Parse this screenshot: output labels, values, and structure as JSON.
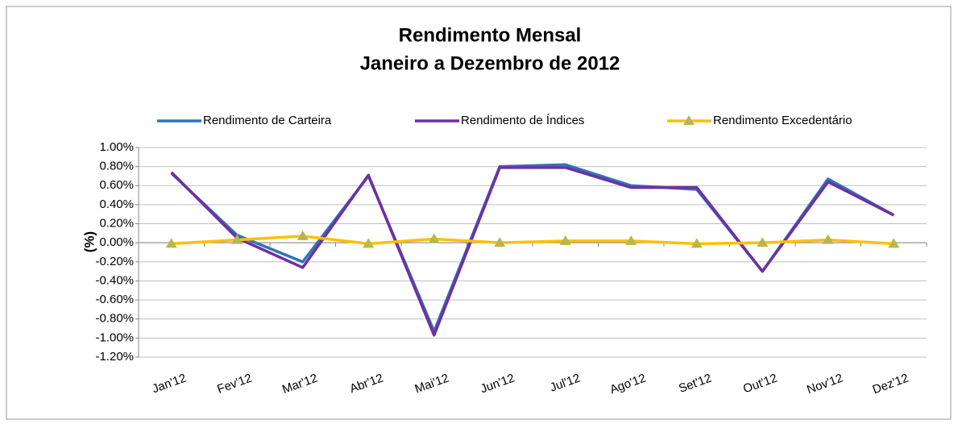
{
  "chart_data": {
    "type": "line",
    "title": "Rendimento Mensal",
    "subtitle": "Janeiro a Dezembro de 2012",
    "ylabel": "(%)",
    "categories": [
      "Jan'12",
      "Fev'12",
      "Mar'12",
      "Abr'12",
      "Mai'12",
      "Jun'12",
      "Jul'12",
      "Ago'12",
      "Set'12",
      "Out'12",
      "Nov'12",
      "Dez'12"
    ],
    "series": [
      {
        "name": "Rendimento de Carteira",
        "color": "#2e75b6",
        "values": [
          0.73,
          0.08,
          -0.2,
          0.7,
          -0.93,
          0.8,
          0.82,
          0.6,
          0.56,
          -0.3,
          0.67,
          0.29
        ]
      },
      {
        "name": "Rendimento de Índices",
        "color": "#7030a0",
        "values": [
          0.74,
          0.05,
          -0.26,
          0.71,
          -0.97,
          0.79,
          0.79,
          0.58,
          0.58,
          -0.3,
          0.64,
          0.29
        ]
      },
      {
        "name": "Rendimento Excedentário",
        "color": "#ffc000",
        "marker": "triangle",
        "marker_color": "#b5b84a",
        "values": [
          -0.01,
          0.03,
          0.07,
          -0.01,
          0.04,
          0.0,
          0.02,
          0.02,
          -0.01,
          0.0,
          0.03,
          -0.01
        ]
      }
    ],
    "ylim": [
      -1.2,
      1.0
    ],
    "yticks": [
      {
        "value": -1.2,
        "label": "-1.20%"
      },
      {
        "value": -1.0,
        "label": "-1.00%"
      },
      {
        "value": -0.8,
        "label": "-0.80%"
      },
      {
        "value": -0.6,
        "label": "-0.60%"
      },
      {
        "value": -0.4,
        "label": "-0.40%"
      },
      {
        "value": -0.2,
        "label": "-0.20%"
      },
      {
        "value": 0,
        "label": "0.00%"
      },
      {
        "value": 0.2,
        "label": "0.20%"
      },
      {
        "value": 0.4,
        "label": "0.40%"
      },
      {
        "value": 0.6,
        "label": "0.60%"
      },
      {
        "value": 0.8,
        "label": "0.80%"
      },
      {
        "value": 1.0,
        "label": "1.00%"
      }
    ],
    "grid": true,
    "legend": "top"
  }
}
